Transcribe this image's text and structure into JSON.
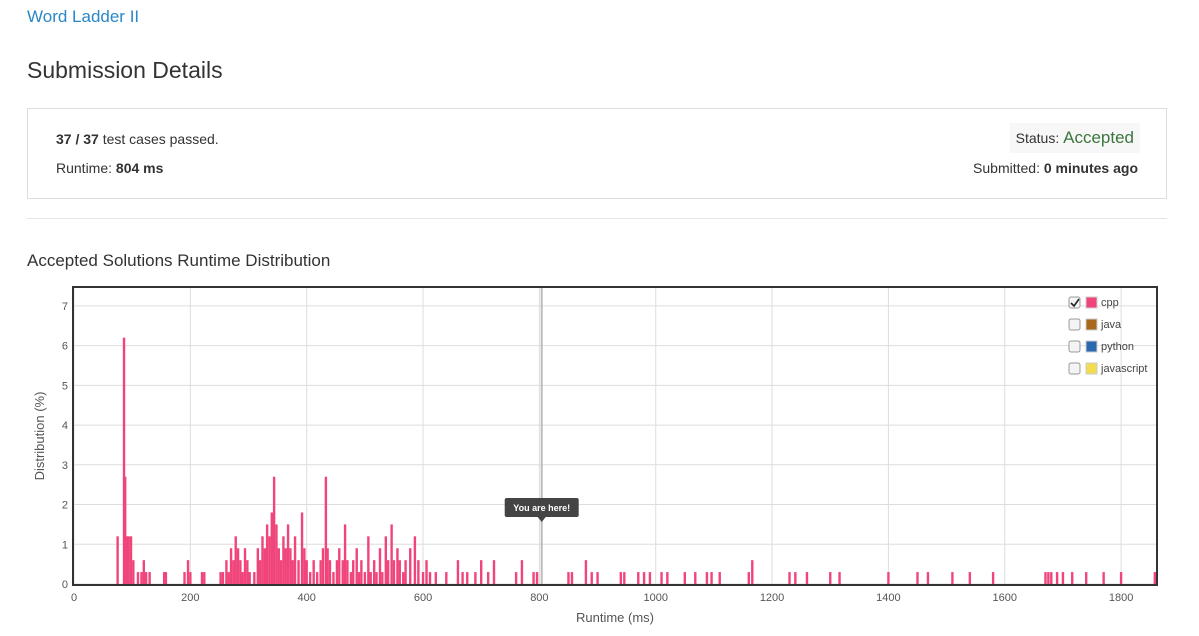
{
  "header": {
    "problem": "Word Ladder II",
    "title": "Submission Details"
  },
  "details": {
    "passed": "37",
    "separator": "/",
    "total": "37",
    "passed_text": "test cases passed.",
    "runtime_label": "Runtime:",
    "runtime": "804 ms",
    "status_label": "Status:",
    "status": "Accepted",
    "submitted_label": "Submitted:",
    "submitted": "0 minutes ago"
  },
  "chart_data": {
    "type": "bar",
    "title": "Accepted Solutions Runtime Distribution",
    "x_label": "Runtime (ms)",
    "y_label": "Distribution (%)",
    "xlim": [
      0,
      1860
    ],
    "ylim": [
      0,
      7.45
    ],
    "xticks": [
      0,
      200,
      400,
      600,
      800,
      1000,
      1200,
      1400,
      1600,
      1800
    ],
    "yticks": [
      0,
      1,
      2,
      3,
      4,
      5,
      6,
      7
    ],
    "grid": true,
    "marker": {
      "x": 804,
      "label": "You are here!"
    },
    "x": [
      75,
      86,
      88,
      91,
      94,
      98,
      102,
      110,
      116,
      120,
      124,
      130,
      155,
      158,
      190,
      196,
      200,
      220,
      224,
      252,
      256,
      262,
      266,
      270,
      274,
      278,
      282,
      286,
      290,
      294,
      298,
      302,
      310,
      316,
      320,
      324,
      328,
      332,
      336,
      340,
      344,
      348,
      352,
      356,
      360,
      364,
      368,
      372,
      376,
      380,
      386,
      392,
      396,
      400,
      406,
      412,
      418,
      424,
      428,
      433,
      436,
      440,
      446,
      452,
      456,
      462,
      466,
      470,
      476,
      480,
      486,
      490,
      494,
      500,
      506,
      510,
      516,
      520,
      526,
      530,
      536,
      540,
      546,
      550,
      556,
      560,
      566,
      570,
      578,
      586,
      592,
      600,
      606,
      612,
      622,
      640,
      660,
      668,
      676,
      690,
      700,
      712,
      722,
      760,
      770,
      790,
      796,
      850,
      856,
      880,
      890,
      900,
      940,
      946,
      970,
      980,
      990,
      1010,
      1020,
      1050,
      1068,
      1088,
      1096,
      1110,
      1160,
      1166,
      1230,
      1240,
      1260,
      1300,
      1316,
      1400,
      1450,
      1468,
      1510,
      1540,
      1580,
      1670,
      1675,
      1680,
      1690,
      1700,
      1716,
      1740,
      1770,
      1800,
      1858
    ],
    "series": [
      {
        "name": "cpp",
        "color": "#f0457b",
        "checked": true,
        "values": [
          1.2,
          6.2,
          2.7,
          1.2,
          1.2,
          1.2,
          0.6,
          0.3,
          0.3,
          0.6,
          0.3,
          0.3,
          0.3,
          0.3,
          0.3,
          0.6,
          0.3,
          0.3,
          0.3,
          0.3,
          0.3,
          0.6,
          0.3,
          0.9,
          0.6,
          1.2,
          0.9,
          0.6,
          0.3,
          0.9,
          0.6,
          0.3,
          0.3,
          0.9,
          0.6,
          1.2,
          0.9,
          1.5,
          1.2,
          1.8,
          2.7,
          1.5,
          0.9,
          0.6,
          1.2,
          0.9,
          1.5,
          0.9,
          0.6,
          1.2,
          0.6,
          1.8,
          0.9,
          0.6,
          0.3,
          0.6,
          0.3,
          0.6,
          0.9,
          2.7,
          0.9,
          0.6,
          0.3,
          0.6,
          0.9,
          0.6,
          1.5,
          0.6,
          0.3,
          0.6,
          0.9,
          0.3,
          0.6,
          0.3,
          1.2,
          0.3,
          0.6,
          0.3,
          0.9,
          0.3,
          1.2,
          0.6,
          1.5,
          0.6,
          0.9,
          0.6,
          0.3,
          0.6,
          0.9,
          1.2,
          0.6,
          0.3,
          0.6,
          0.3,
          0.3,
          0.3,
          0.6,
          0.3,
          0.3,
          0.3,
          0.6,
          0.3,
          0.6,
          0.3,
          0.6,
          0.3,
          0.3,
          0.3,
          0.3,
          0.6,
          0.3,
          0.3,
          0.3,
          0.3,
          0.3,
          0.3,
          0.3,
          0.3,
          0.3,
          0.3,
          0.3,
          0.3,
          0.3,
          0.3,
          0.3,
          0.6,
          0.3,
          0.3,
          0.3,
          0.3,
          0.3,
          0.3,
          0.3,
          0.3,
          0.3,
          0.3,
          0.3,
          0.3,
          0.3,
          0.3,
          0.3,
          0.3,
          0.3,
          0.3,
          0.3,
          0.3,
          0.3
        ]
      },
      {
        "name": "java",
        "color": "#a8691c",
        "checked": false
      },
      {
        "name": "python",
        "color": "#2a69ad",
        "checked": false
      },
      {
        "name": "javascript",
        "color": "#f2dc4f",
        "checked": false
      }
    ]
  }
}
